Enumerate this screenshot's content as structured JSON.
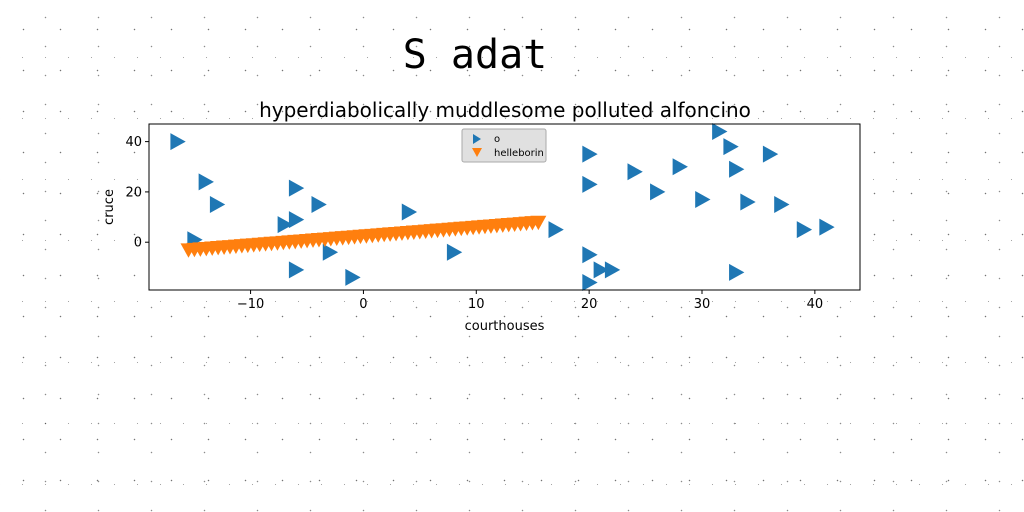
{
  "figure": {
    "suptitle": "S adat"
  },
  "chart_data": {
    "type": "scatter",
    "title": "hyperdiabolically muddlesome polluted alfoncino",
    "xlabel": "courthouses",
    "ylabel": "cruce",
    "xlim": [
      -19,
      44
    ],
    "ylim": [
      -19,
      47
    ],
    "xticks": [
      -10,
      0,
      10,
      20,
      30,
      40
    ],
    "yticks": [
      0,
      20,
      40
    ],
    "grid": false,
    "legend_position": "upper center",
    "series": [
      {
        "name": "o",
        "marker": "triangle-right",
        "color": "#1f77b4",
        "points": [
          [
            -16.5,
            40
          ],
          [
            -14,
            24
          ],
          [
            -13,
            15
          ],
          [
            -15,
            1
          ],
          [
            -7,
            7
          ],
          [
            -6,
            9
          ],
          [
            -6,
            21.5
          ],
          [
            -4,
            15
          ],
          [
            -6,
            -11
          ],
          [
            -3,
            -4
          ],
          [
            -1,
            -14
          ],
          [
            4,
            12
          ],
          [
            8,
            -4
          ],
          [
            17,
            5
          ],
          [
            20,
            35
          ],
          [
            20,
            23
          ],
          [
            20,
            -5
          ],
          [
            21,
            -11
          ],
          [
            22,
            -11
          ],
          [
            20,
            -16
          ],
          [
            24,
            28
          ],
          [
            26,
            20
          ],
          [
            28,
            30
          ],
          [
            30,
            17
          ],
          [
            31.5,
            44
          ],
          [
            32.5,
            38
          ],
          [
            33,
            29
          ],
          [
            34,
            16
          ],
          [
            33,
            -12
          ],
          [
            36,
            35
          ],
          [
            37,
            15
          ],
          [
            39,
            5
          ],
          [
            41,
            6
          ]
        ]
      },
      {
        "name": "helleborin",
        "marker": "triangle-down",
        "color": "#ff7f0e",
        "line": {
          "x_start": -15.5,
          "x_end": 15.5,
          "y_start": -3,
          "y_end": 8,
          "count": 60
        }
      }
    ]
  }
}
